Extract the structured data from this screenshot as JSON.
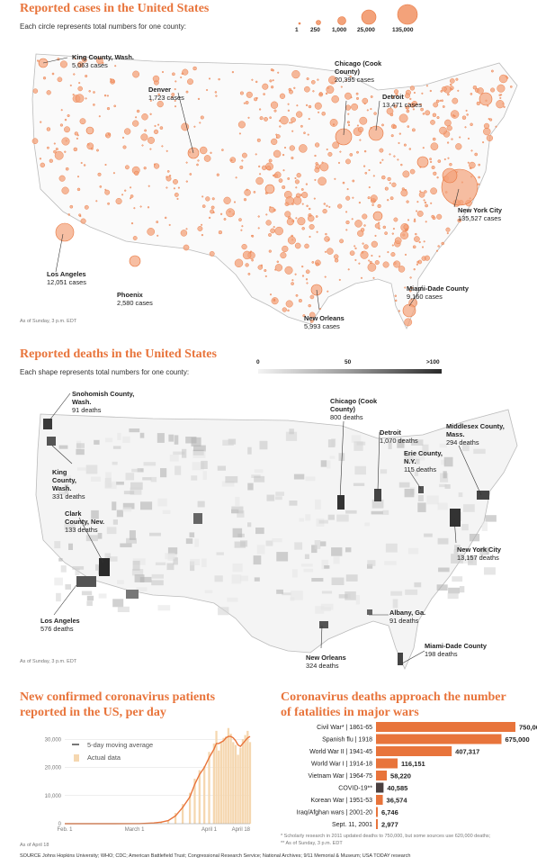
{
  "cases_map": {
    "title": "Reported cases in the United States",
    "subtitle": "Each circle represents total numbers for one county:",
    "legend": [
      "1",
      "250",
      "1,000",
      "25,000",
      "135,000"
    ],
    "asof": "As of Sunday, 3 p.m. EDT",
    "callouts": [
      {
        "name": "King County, Wash.",
        "value": "5,063 cases"
      },
      {
        "name": "Denver",
        "value": "1,723 cases"
      },
      {
        "name": "Chicago (Cook County)",
        "value": "20,395 cases"
      },
      {
        "name": "Detroit",
        "value": "13,471 cases"
      },
      {
        "name": "New York City",
        "value": "135,527 cases"
      },
      {
        "name": "Los Angeles",
        "value": "12,051 cases"
      },
      {
        "name": "Phoenix",
        "value": "2,580 cases"
      },
      {
        "name": "Miami-Dade County",
        "value": "9,160 cases"
      },
      {
        "name": "New Orleans",
        "value": "5,993 cases"
      }
    ]
  },
  "deaths_map": {
    "title": "Reported deaths in the United States",
    "subtitle": "Each shape represents total numbers for one county:",
    "legend": [
      "0",
      "50",
      ">100"
    ],
    "asof": "As of Sunday, 3 p.m. EDT",
    "callouts": [
      {
        "name": "Snohomish County, Wash.",
        "value": "91 deaths"
      },
      {
        "name": "King County, Wash.",
        "value": "331 deaths"
      },
      {
        "name": "Clark County, Nev.",
        "value": "133 deaths"
      },
      {
        "name": "Los Angeles",
        "value": "576 deaths"
      },
      {
        "name": "Chicago (Cook County)",
        "value": "800 deaths"
      },
      {
        "name": "Detroit",
        "value": "1,070 deaths"
      },
      {
        "name": "Erie County, N.Y.",
        "value": "115 deaths"
      },
      {
        "name": "Middlesex County, Mass.",
        "value": "294 deaths"
      },
      {
        "name": "New York City",
        "value": "13,157 deaths"
      },
      {
        "name": "Albany, Ga.",
        "value": "91 deaths"
      },
      {
        "name": "New Orleans",
        "value": "324 deaths"
      },
      {
        "name": "Miami-Dade County",
        "value": "198 deaths"
      }
    ]
  },
  "new_cases": {
    "title_line1": "New confirmed coronavirus patients",
    "title_line2": "reported in the US, per day",
    "legend_avg": "5-day moving average",
    "legend_actual": "Actual data",
    "asof": "As of April 18"
  },
  "wars": {
    "title_line1": "Coronavirus deaths approach the number",
    "title_line2": "of fatalities in major wars",
    "footnote1": "* Scholarly research in 2011 updated deaths to 750,000, but some sources use 620,000 deaths;",
    "footnote2": "** As of Sunday, 3 p.m. EDT"
  },
  "source": "SOURCE Johns Hopkins University; WHO; CDC; American Battlefield Trust; Congressional Research Service; National Archives; 9/11 Memorial & Museum; USA TODAY research",
  "colors": {
    "orange": "#e8743b",
    "orange_light": "#f3a27a",
    "dark": "#444444",
    "bar_fill": "#f5d7b0"
  },
  "chart_data": [
    {
      "type": "area",
      "title": "New confirmed coronavirus patients reported in the US, per day",
      "x_ticks": [
        "Feb. 1",
        "March 1",
        "April 1",
        "April 18"
      ],
      "y_ticks": [
        "0",
        "10,000",
        "20,000",
        "30,000"
      ],
      "ylim": [
        0,
        32000
      ],
      "series": [
        {
          "name": "Actual data",
          "x": [
            "Feb 1",
            "Feb 8",
            "Feb 15",
            "Feb 22",
            "Feb 29",
            "Mar 3",
            "Mar 6",
            "Mar 9",
            "Mar 12",
            "Mar 15",
            "Mar 18",
            "Mar 21",
            "Mar 24",
            "Mar 26",
            "Mar 28",
            "Mar 30",
            "Apr 1",
            "Apr 3",
            "Apr 4",
            "Apr 5",
            "Apr 6",
            "Apr 7",
            "Apr 8",
            "Apr 9",
            "Apr 10",
            "Apr 11",
            "Apr 12",
            "Apr 13",
            "Apr 14",
            "Apr 15",
            "Apr 16",
            "Apr 17",
            "Apr 18"
          ],
          "values": [
            0,
            0,
            5,
            10,
            20,
            50,
            150,
            300,
            700,
            1300,
            3800,
            7000,
            11000,
            16000,
            19000,
            20500,
            25500,
            28500,
            33000,
            26000,
            29000,
            30500,
            31000,
            34000,
            32000,
            29000,
            28000,
            24500,
            27000,
            30000,
            31500,
            33000,
            29000
          ]
        },
        {
          "name": "5-day moving average",
          "x": [
            "Feb 1",
            "Feb 8",
            "Feb 15",
            "Feb 22",
            "Feb 29",
            "Mar 3",
            "Mar 6",
            "Mar 9",
            "Mar 12",
            "Mar 15",
            "Mar 18",
            "Mar 21",
            "Mar 24",
            "Mar 26",
            "Mar 28",
            "Mar 30",
            "Apr 1",
            "Apr 3",
            "Apr 4",
            "Apr 5",
            "Apr 6",
            "Apr 7",
            "Apr 8",
            "Apr 9",
            "Apr 10",
            "Apr 11",
            "Apr 12",
            "Apr 13",
            "Apr 14",
            "Apr 15",
            "Apr 16",
            "Apr 17",
            "Apr 18"
          ],
          "values": [
            0,
            0,
            5,
            10,
            18,
            40,
            120,
            250,
            550,
            1100,
            2800,
            5800,
            9500,
            14000,
            17500,
            20000,
            23500,
            26500,
            28500,
            28500,
            29000,
            29500,
            30500,
            31000,
            31000,
            30500,
            29500,
            28000,
            27500,
            28500,
            29500,
            30500,
            31000
          ]
        }
      ]
    },
    {
      "type": "bar",
      "title": "Coronavirus deaths approach the number of fatalities in major wars",
      "categories": [
        "Civil War* | 1861-65",
        "Spanish flu | 1918",
        "World War II | 1941-45",
        "World War I | 1914-18",
        "Vietnam War | 1964-75",
        "COVID-19**",
        "Korean War | 1951-53",
        "Iraq/Afghan wars | 2001-20",
        "Sept. 11, 2001"
      ],
      "values": [
        750000,
        675000,
        407317,
        116151,
        58220,
        40585,
        36574,
        6746,
        2977
      ],
      "labels": [
        "750,000",
        "675,000",
        "407,317",
        "116,151",
        "58,220",
        "40,585",
        "36,574",
        "6,746",
        "2,977"
      ],
      "highlight": "COVID-19**"
    }
  ]
}
